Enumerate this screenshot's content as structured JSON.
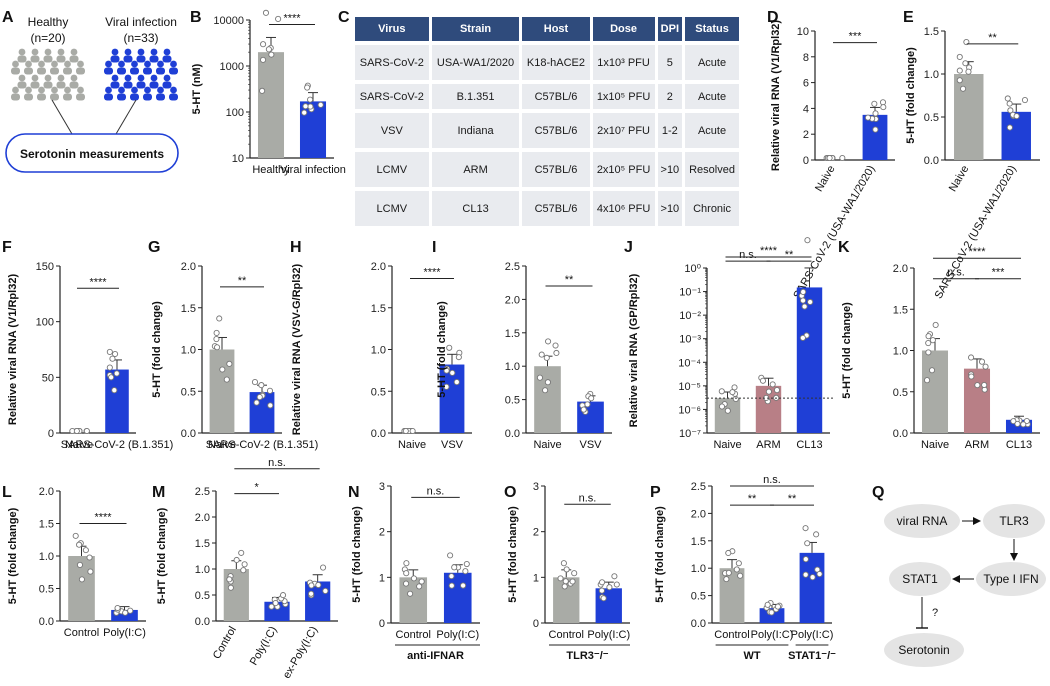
{
  "colors": {
    "gray": "#a9aba6",
    "blue": "#1f3fd6",
    "mauve": "#b87f86",
    "navy": "#2f4b7c",
    "cell": "#e9ebef",
    "node": "#e4e4e4"
  },
  "panelA": {
    "label": "A",
    "healthy": {
      "title": "Healthy",
      "n": "(n=20)"
    },
    "viral": {
      "title": "Viral infection",
      "n": "(n=33)"
    },
    "box": "Serotonin measurements"
  },
  "tableC": {
    "label": "C",
    "headers": [
      "Virus",
      "Strain",
      "Host",
      "Dose",
      "DPI",
      "Status"
    ],
    "rows": [
      [
        "SARS-CoV-2",
        "USA-WA1/2020",
        "K18-hACE2",
        "1x10³ PFU",
        "5",
        "Acute"
      ],
      [
        "SARS-CoV-2",
        "B.1.351",
        "C57BL/6",
        "1x10⁵ PFU",
        "2",
        "Acute"
      ],
      [
        "VSV",
        "Indiana",
        "C57BL/6",
        "2x10⁷ PFU",
        "1-2",
        "Acute"
      ],
      [
        "LCMV",
        "ARM",
        "C57BL/6",
        "2x10⁵ PFU",
        ">10",
        "Resolved"
      ],
      [
        "LCMV",
        "CL13",
        "C57BL/6",
        "4x10⁶ PFU",
        ">10",
        "Chronic"
      ]
    ]
  },
  "chart_data": [
    {
      "id": "B",
      "type": "bar",
      "scale": "log",
      "ylabel": "5-HT (nM)",
      "ylim": [
        10,
        10000
      ],
      "yticks": [
        {
          "v": 10,
          "t": "10"
        },
        {
          "v": 100,
          "t": "100"
        },
        {
          "v": 1000,
          "t": "1000"
        },
        {
          "v": 10000,
          "t": "10000"
        }
      ],
      "categories": [
        "Healthy",
        "Viral infection"
      ],
      "values": [
        2000,
        170
      ],
      "sig": [
        {
          "a": 0,
          "b": 1,
          "text": "****",
          "y": 8000
        }
      ]
    },
    {
      "id": "D",
      "type": "bar",
      "ylabel": "Relative viral RNA (V1/Rpl32)",
      "ylim": [
        0,
        10
      ],
      "yticks": [
        {
          "v": 0,
          "t": "0"
        },
        {
          "v": 2,
          "t": "2"
        },
        {
          "v": 4,
          "t": "4"
        },
        {
          "v": 6,
          "t": "6"
        },
        {
          "v": 8,
          "t": "8"
        },
        {
          "v": 10,
          "t": "10"
        }
      ],
      "categories": [
        "Naive",
        "SARS-CoV-2 (USA-WA1/2020)"
      ],
      "values": [
        0,
        3.5
      ],
      "sig": [
        {
          "a": 0,
          "b": 1,
          "text": "***",
          "y": 9.1
        }
      ]
    },
    {
      "id": "E",
      "type": "bar",
      "ylabel": "5-HT (fold change)",
      "ylim": [
        0,
        1.5
      ],
      "yticks": [
        {
          "v": 0,
          "t": "0.0"
        },
        {
          "v": 0.5,
          "t": "0.5"
        },
        {
          "v": 1,
          "t": "1.0"
        },
        {
          "v": 1.5,
          "t": "1.5"
        }
      ],
      "categories": [
        "Naive",
        "SARS-CoV-2 (USA-WA1/2020)"
      ],
      "values": [
        1.0,
        0.56
      ],
      "sig": [
        {
          "a": 0,
          "b": 1,
          "text": "**",
          "y": 1.35
        }
      ]
    },
    {
      "id": "F",
      "type": "bar",
      "ylabel": "Relative viral RNA (V1/Rpl32)",
      "ylim": [
        0,
        150
      ],
      "yticks": [
        {
          "v": 0,
          "t": "0"
        },
        {
          "v": 50,
          "t": "50"
        },
        {
          "v": 100,
          "t": "100"
        },
        {
          "v": 150,
          "t": "150"
        }
      ],
      "categories": [
        "Naive",
        "SARS-CoV-2 (B.1.351)"
      ],
      "values": [
        0,
        57
      ],
      "sig": [
        {
          "a": 0,
          "b": 1,
          "text": "****",
          "y": 130
        }
      ]
    },
    {
      "id": "G",
      "type": "bar",
      "ylabel": "5-HT (fold change)",
      "ylim": [
        0,
        2.0
      ],
      "yticks": [
        {
          "v": 0,
          "t": "0.0"
        },
        {
          "v": 0.5,
          "t": "0.5"
        },
        {
          "v": 1,
          "t": "1.0"
        },
        {
          "v": 1.5,
          "t": "1.5"
        },
        {
          "v": 2,
          "t": "2.0"
        }
      ],
      "categories": [
        "Naive",
        "SARS-CoV-2 (B.1.351)"
      ],
      "values": [
        1.0,
        0.49
      ],
      "sig": [
        {
          "a": 0,
          "b": 1,
          "text": "**",
          "y": 1.75
        }
      ]
    },
    {
      "id": "H",
      "type": "bar",
      "ylabel": "Relative viral RNA (VSV-G/Rpl32)",
      "ylim": [
        0,
        2.0
      ],
      "yticks": [
        {
          "v": 0,
          "t": "0.0"
        },
        {
          "v": 0.5,
          "t": "0.5"
        },
        {
          "v": 1,
          "t": "1.0"
        },
        {
          "v": 1.5,
          "t": "1.5"
        },
        {
          "v": 2,
          "t": "2.0"
        }
      ],
      "categories": [
        "Naive",
        "VSV"
      ],
      "values": [
        0,
        0.82
      ],
      "sig": [
        {
          "a": 0,
          "b": 1,
          "text": "****",
          "y": 1.85
        }
      ]
    },
    {
      "id": "I",
      "type": "bar",
      "ylabel": "5-HT (fold change)",
      "ylim": [
        0,
        2.5
      ],
      "yticks": [
        {
          "v": 0,
          "t": "0.0"
        },
        {
          "v": 0.5,
          "t": "0.5"
        },
        {
          "v": 1,
          "t": "1.0"
        },
        {
          "v": 1.5,
          "t": "1.5"
        },
        {
          "v": 2,
          "t": "2.0"
        },
        {
          "v": 2.5,
          "t": "2.5"
        }
      ],
      "categories": [
        "Naive",
        "VSV"
      ],
      "values": [
        1.0,
        0.47
      ],
      "sig": [
        {
          "a": 0,
          "b": 1,
          "text": "**",
          "y": 2.2
        }
      ]
    },
    {
      "id": "J",
      "type": "bar",
      "scale": "log",
      "ylabel": "Relative viral RNA (GP/Rpl32)",
      "ylim": [
        1e-07,
        1
      ],
      "yticks": [
        {
          "v": 1e-07,
          "t": "10⁻⁷"
        },
        {
          "v": 1e-06,
          "t": "10⁻⁶"
        },
        {
          "v": 1e-05,
          "t": "10⁻⁵"
        },
        {
          "v": 0.0001,
          "t": "10⁻⁴"
        },
        {
          "v": 0.001,
          "t": "10⁻³"
        },
        {
          "v": 0.01,
          "t": "10⁻²"
        },
        {
          "v": 0.1,
          "t": "10⁻¹"
        },
        {
          "v": 1,
          "t": "10⁰"
        }
      ],
      "categories": [
        "Naive",
        "ARM",
        "CL13"
      ],
      "values": [
        3e-06,
        1e-05,
        0.15
      ],
      "threshold": 3e-06,
      "sig": [
        {
          "a": 0,
          "b": 1,
          "text": "n.s.",
          "y": 3
        },
        {
          "a": 1,
          "b": 2,
          "text": "**",
          "y": 3
        },
        {
          "a": 0,
          "b": 2,
          "text": "****",
          "y": 15
        }
      ]
    },
    {
      "id": "K",
      "type": "bar",
      "ylabel": "5-HT (fold change)",
      "ylim": [
        0,
        2.0
      ],
      "yticks": [
        {
          "v": 0,
          "t": "0.0"
        },
        {
          "v": 0.5,
          "t": "0.5"
        },
        {
          "v": 1,
          "t": "1.0"
        },
        {
          "v": 1.5,
          "t": "1.5"
        },
        {
          "v": 2,
          "t": "2.0"
        }
      ],
      "categories": [
        "Naive",
        "ARM",
        "CL13"
      ],
      "values": [
        1.0,
        0.78,
        0.16
      ],
      "sig": [
        {
          "a": 0,
          "b": 1,
          "text": "n.s.",
          "y": 1.87
        },
        {
          "a": 1,
          "b": 2,
          "text": "***",
          "y": 1.87
        },
        {
          "a": 0,
          "b": 2,
          "text": "****",
          "y": 2.07
        }
      ]
    },
    {
      "id": "L",
      "type": "bar",
      "ylabel": "5-HT (fold change)",
      "ylim": [
        0,
        2.0
      ],
      "yticks": [
        {
          "v": 0,
          "t": "0.0"
        },
        {
          "v": 0.5,
          "t": "0.5"
        },
        {
          "v": 1,
          "t": "1.0"
        },
        {
          "v": 1.5,
          "t": "1.5"
        },
        {
          "v": 2,
          "t": "2.0"
        }
      ],
      "categories": [
        "Control",
        "Poly(I:C)"
      ],
      "values": [
        1.0,
        0.17
      ],
      "sig": [
        {
          "a": 0,
          "b": 1,
          "text": "****",
          "y": 1.5
        }
      ]
    },
    {
      "id": "M",
      "type": "bar",
      "ylabel": "5-HT (fold change)",
      "ylim": [
        0,
        2.5
      ],
      "yticks": [
        {
          "v": 0,
          "t": "0.0"
        },
        {
          "v": 0.5,
          "t": "0.5"
        },
        {
          "v": 1,
          "t": "1.0"
        },
        {
          "v": 1.5,
          "t": "1.5"
        },
        {
          "v": 2,
          "t": "2.0"
        },
        {
          "v": 2.5,
          "t": "2.5"
        }
      ],
      "categories": [
        "Control",
        "Poly(I:C)",
        "ex-Poly(I:C)"
      ],
      "values": [
        1.0,
        0.37,
        0.76
      ],
      "sig": [
        {
          "a": 0,
          "b": 1,
          "text": "*",
          "y": 2.45
        },
        {
          "a": 0,
          "b": 2,
          "text": "n.s.",
          "y": 2.85
        }
      ]
    },
    {
      "id": "N",
      "type": "bar",
      "ylabel": "5-HT (fold change)",
      "ylim": [
        0,
        3
      ],
      "yticks": [
        {
          "v": 0,
          "t": "0"
        },
        {
          "v": 1,
          "t": "1"
        },
        {
          "v": 2,
          "t": "2"
        },
        {
          "v": 3,
          "t": "3"
        }
      ],
      "categories": [
        "Control",
        "Poly(I:C)"
      ],
      "values": [
        1.0,
        1.1
      ],
      "group": "anti-IFNAR",
      "sig": [
        {
          "a": 0,
          "b": 1,
          "text": "n.s.",
          "y": 2.75
        }
      ]
    },
    {
      "id": "O",
      "type": "bar",
      "ylabel": "5-HT (fold change)",
      "ylim": [
        0,
        3
      ],
      "yticks": [
        {
          "v": 0,
          "t": "0"
        },
        {
          "v": 1,
          "t": "1"
        },
        {
          "v": 2,
          "t": "2"
        },
        {
          "v": 3,
          "t": "3"
        }
      ],
      "categories": [
        "Control",
        "Poly(I:C)"
      ],
      "values": [
        1.0,
        0.76
      ],
      "group": "TLR3⁻/⁻",
      "sig": [
        {
          "a": 0,
          "b": 1,
          "text": "n.s.",
          "y": 2.6
        }
      ]
    },
    {
      "id": "P",
      "type": "bar",
      "ylabel": "5-HT (fold change)",
      "ylim": [
        0,
        2.5
      ],
      "yticks": [
        {
          "v": 0,
          "t": "0.0"
        },
        {
          "v": 0.5,
          "t": "0.5"
        },
        {
          "v": 1,
          "t": "1.0"
        },
        {
          "v": 1.5,
          "t": "1.5"
        },
        {
          "v": 2,
          "t": "2.0"
        },
        {
          "v": 2.5,
          "t": "2.5"
        }
      ],
      "categories": [
        "Control",
        "Poly(I:C)",
        "Poly(I:C)"
      ],
      "values": [
        1.0,
        0.27,
        1.28
      ],
      "groups": [
        {
          "label": "WT",
          "from": 0,
          "to": 1
        },
        {
          "label": "STAT1⁻/⁻",
          "from": 2,
          "to": 2
        }
      ],
      "sig": [
        {
          "a": 0,
          "b": 1,
          "text": "**",
          "y": 2.15
        },
        {
          "a": 1,
          "b": 2,
          "text": "**",
          "y": 2.15
        },
        {
          "a": 0,
          "b": 2,
          "text": "n.s.",
          "y": 2.5
        }
      ]
    }
  ],
  "panelQ": {
    "label": "Q",
    "nodes": {
      "viral_rna": "viral RNA",
      "tlr3": "TLR3",
      "ifn": "Type I IFN",
      "stat1": "STAT1",
      "serotonin": "Serotonin"
    },
    "question": "?"
  }
}
